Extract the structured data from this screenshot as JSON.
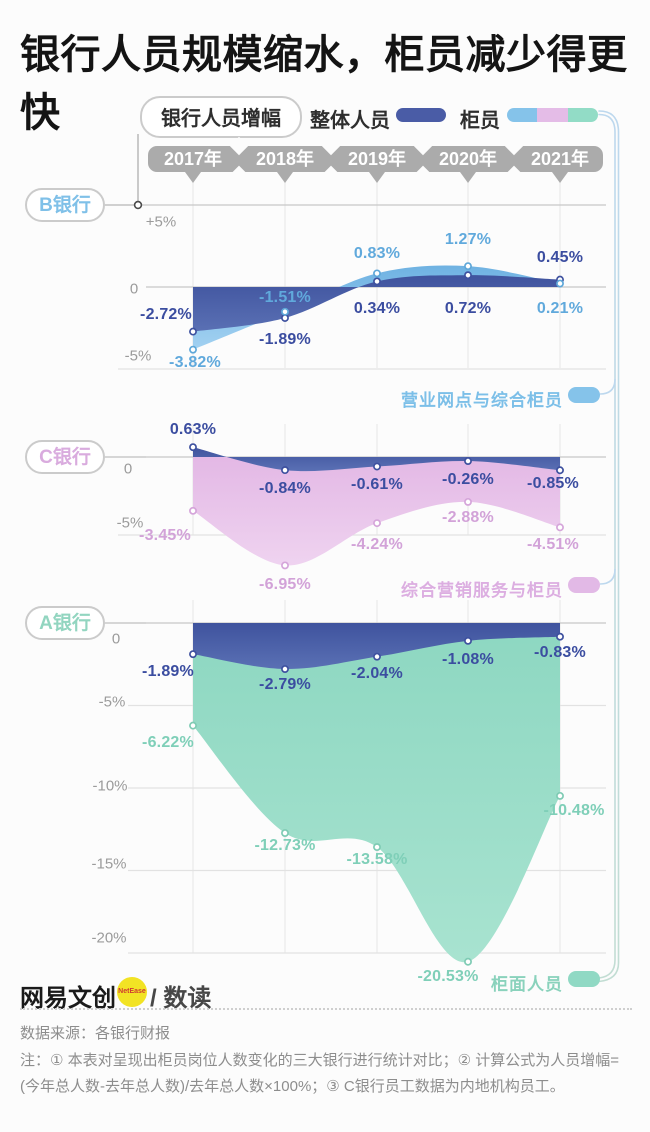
{
  "title": "银行人员规模缩水，柜员减少得更快",
  "legend": {
    "box_label": "银行人员增幅",
    "items": [
      {
        "label": "整体人员",
        "color": "#4a5ca6"
      },
      {
        "label": "柜员",
        "colors": [
          "#85c3ea",
          "#e4bce7",
          "#92dcc6"
        ]
      }
    ]
  },
  "years": [
    "2017年",
    "2018年",
    "2019年",
    "2020年",
    "2021年"
  ],
  "chart_data": [
    {
      "type": "area",
      "bank": "B银行",
      "bank_color": "#7fc0e8",
      "series_tag": {
        "label": "营业网点与综合柜员",
        "color": "#7cbfe8",
        "pill_color": "#85c3ea"
      },
      "categories": [
        "2017年",
        "2018年",
        "2019年",
        "2020年",
        "2021年"
      ],
      "series": [
        {
          "name": "整体人员",
          "values": [
            -2.72,
            -1.89,
            0.34,
            0.72,
            0.45
          ],
          "labels": [
            "-2.72%",
            "-1.89%",
            "0.34%",
            "0.72%",
            "0.45%"
          ]
        },
        {
          "name": "柜员",
          "values": [
            -3.82,
            -1.51,
            0.83,
            1.27,
            0.21
          ],
          "labels": [
            "-3.82%",
            "-1.51%",
            "0.83%",
            "1.27%",
            "0.21%"
          ]
        }
      ],
      "y_ticks": [
        {
          "label": "+5%",
          "value": 5
        },
        {
          "label": "0",
          "value": 0
        },
        {
          "label": "-5%",
          "value": -5
        }
      ],
      "ylim": [
        -5.6,
        5.0
      ],
      "grid": true,
      "legend_position": "top"
    },
    {
      "type": "area",
      "bank": "C银行",
      "bank_color": "#d9abde",
      "series_tag": {
        "label": "综合营销服务与柜员",
        "color": "#dcaee1",
        "pill_color": "#e2b9e6"
      },
      "categories": [
        "2017年",
        "2018年",
        "2019年",
        "2020年",
        "2021年"
      ],
      "series": [
        {
          "name": "整体人员",
          "values": [
            0.63,
            -0.84,
            -0.61,
            -0.26,
            -0.85
          ],
          "labels": [
            "0.63%",
            "-0.84%",
            "-0.61%",
            "-0.26%",
            "-0.85%"
          ]
        },
        {
          "name": "柜员",
          "values": [
            -3.45,
            -6.95,
            -4.24,
            -2.88,
            -4.51
          ],
          "labels": [
            "-3.45%",
            "-6.95%",
            "-4.24%",
            "-2.88%",
            "-4.51%"
          ]
        }
      ],
      "y_ticks": [
        {
          "label": "0",
          "value": 0
        },
        {
          "label": "-5%",
          "value": -5
        }
      ],
      "ylim": [
        -7.5,
        1.2
      ],
      "grid": true,
      "legend_position": "top"
    },
    {
      "type": "area",
      "bank": "A银行",
      "bank_color": "#92d5c0",
      "series_tag": {
        "label": "柜面人员",
        "color": "#8ad2bc",
        "pill_color": "#90d9c4"
      },
      "categories": [
        "2017年",
        "2018年",
        "2019年",
        "2020年",
        "2021年"
      ],
      "series": [
        {
          "name": "整体人员",
          "values": [
            -1.89,
            -2.79,
            -2.04,
            -1.08,
            -0.83
          ],
          "labels": [
            "-1.89%",
            "-2.79%",
            "-2.04%",
            "-1.08%",
            "-0.83%"
          ]
        },
        {
          "name": "柜员",
          "values": [
            -6.22,
            -12.73,
            -13.58,
            -20.53,
            -10.48
          ],
          "labels": [
            "-6.22%",
            "-12.73%",
            "-13.58%",
            "-20.53%",
            "-10.48%"
          ]
        }
      ],
      "y_ticks": [
        {
          "label": "0",
          "value": 0
        },
        {
          "label": "-5%",
          "value": -5
        },
        {
          "label": "-10%",
          "value": -10
        },
        {
          "label": "-15%",
          "value": -15
        },
        {
          "label": "-20%",
          "value": -20
        }
      ],
      "ylim": [
        -21.5,
        0.8
      ],
      "grid": true,
      "legend_position": "top"
    }
  ],
  "footer": {
    "logo": "网易文创",
    "logo_badge": "NetEase",
    "logo_suffix": "/ 数读",
    "source": "数据来源：各银行财报",
    "note": "注：① 本表对呈现出柜员岗位人数变化的三大银行进行统计对比；② 计算公式为人员增幅=(今年总人数-去年总人数)/去年总人数×100%；③ C银行员工数据为内地机构员工。"
  }
}
